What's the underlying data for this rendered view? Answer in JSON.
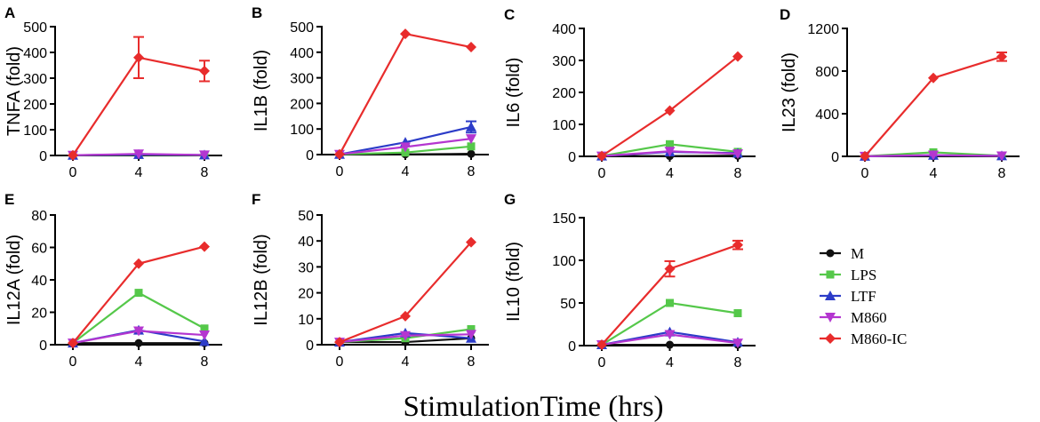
{
  "x_axis_title": "StimulationTime (hrs)",
  "colors": {
    "M": "#111111",
    "LPS": "#55c84a",
    "LTF": "#2c3cc8",
    "M860": "#b436d0",
    "M860-IC": "#e82c2c"
  },
  "legend": [
    {
      "name": "M",
      "marker": "circle"
    },
    {
      "name": "LPS",
      "marker": "square"
    },
    {
      "name": "LTF",
      "marker": "triangle-up"
    },
    {
      "name": "M860",
      "marker": "triangle-down"
    },
    {
      "name": "M860-IC",
      "marker": "diamond"
    }
  ],
  "chart_data": [
    {
      "panel": "A",
      "type": "line",
      "ylabel": "TNFA (fold)",
      "x": [
        0,
        4,
        8
      ],
      "xticks": [
        "0",
        "4",
        "8"
      ],
      "ylim": [
        0,
        500
      ],
      "yticks": [
        0,
        100,
        200,
        300,
        400,
        500
      ],
      "series": [
        {
          "name": "M",
          "values": [
            1,
            1,
            1
          ]
        },
        {
          "name": "LPS",
          "values": [
            1,
            3,
            1
          ]
        },
        {
          "name": "LTF",
          "values": [
            1,
            4,
            2
          ]
        },
        {
          "name": "M860",
          "values": [
            1,
            6,
            2
          ]
        },
        {
          "name": "M860-IC",
          "values": [
            1,
            380,
            328
          ],
          "errors": [
            0,
            80,
            40
          ]
        }
      ]
    },
    {
      "panel": "B",
      "type": "line",
      "ylabel": "IL1B (fold)",
      "x": [
        0,
        4,
        8
      ],
      "xticks": [
        "0",
        "4",
        "8"
      ],
      "ylim": [
        0,
        500
      ],
      "yticks": [
        0,
        100,
        200,
        300,
        400,
        500
      ],
      "series": [
        {
          "name": "M",
          "values": [
            1,
            1,
            3
          ]
        },
        {
          "name": "LPS",
          "values": [
            1,
            8,
            32
          ]
        },
        {
          "name": "LTF",
          "values": [
            1,
            48,
            108
          ],
          "errors": [
            0,
            0,
            22
          ]
        },
        {
          "name": "M860",
          "values": [
            1,
            30,
            62
          ]
        },
        {
          "name": "M860-IC",
          "values": [
            1,
            472,
            420
          ]
        }
      ]
    },
    {
      "panel": "C",
      "type": "line",
      "ylabel": "IL6 (fold)",
      "x": [
        0,
        4,
        8
      ],
      "xticks": [
        "0",
        "4",
        "8"
      ],
      "ylim": [
        0,
        400
      ],
      "yticks": [
        0,
        100,
        200,
        300,
        400
      ],
      "series": [
        {
          "name": "M",
          "values": [
            1,
            1,
            2
          ]
        },
        {
          "name": "LPS",
          "values": [
            1,
            38,
            14
          ]
        },
        {
          "name": "LTF",
          "values": [
            1,
            14,
            10
          ]
        },
        {
          "name": "M860",
          "values": [
            1,
            16,
            8
          ]
        },
        {
          "name": "M860-IC",
          "values": [
            1,
            143,
            312
          ]
        }
      ]
    },
    {
      "panel": "D",
      "type": "line",
      "ylabel": "IL23 (fold)",
      "x": [
        0,
        4,
        8
      ],
      "xticks": [
        "0",
        "4",
        "8"
      ],
      "ylim": [
        0,
        1200
      ],
      "yticks": [
        0,
        400,
        800,
        1200
      ],
      "series": [
        {
          "name": "M",
          "values": [
            1,
            1,
            1
          ]
        },
        {
          "name": "LPS",
          "values": [
            1,
            38,
            5
          ]
        },
        {
          "name": "LTF",
          "values": [
            1,
            10,
            5
          ]
        },
        {
          "name": "M860",
          "values": [
            1,
            12,
            4
          ]
        },
        {
          "name": "M860-IC",
          "values": [
            1,
            735,
            935
          ],
          "errors": [
            0,
            0,
            40
          ]
        }
      ]
    },
    {
      "panel": "E",
      "type": "line",
      "ylabel": "IL12A (fold)",
      "x": [
        0,
        4,
        8
      ],
      "xticks": [
        "0",
        "4",
        "8"
      ],
      "ylim": [
        0,
        80
      ],
      "yticks": [
        0,
        20,
        40,
        60,
        80
      ],
      "series": [
        {
          "name": "M",
          "values": [
            1,
            1,
            1
          ]
        },
        {
          "name": "LPS",
          "values": [
            1,
            32,
            10
          ]
        },
        {
          "name": "LTF",
          "values": [
            1,
            9,
            2
          ]
        },
        {
          "name": "M860",
          "values": [
            1,
            8.5,
            6
          ]
        },
        {
          "name": "M860-IC",
          "values": [
            1,
            50,
            60.5
          ]
        }
      ]
    },
    {
      "panel": "F",
      "type": "line",
      "ylabel": "IL12B (fold)",
      "x": [
        0,
        4,
        8
      ],
      "xticks": [
        "0",
        "4",
        "8"
      ],
      "ylim": [
        0,
        50
      ],
      "yticks": [
        0,
        10,
        20,
        30,
        40,
        50
      ],
      "series": [
        {
          "name": "M",
          "values": [
            1,
            1,
            2.5
          ]
        },
        {
          "name": "LPS",
          "values": [
            1,
            2.5,
            6
          ]
        },
        {
          "name": "LTF",
          "values": [
            1,
            4.5,
            2.5
          ]
        },
        {
          "name": "M860",
          "values": [
            1,
            3.5,
            4
          ]
        },
        {
          "name": "M860-IC",
          "values": [
            1,
            11,
            39.5
          ]
        }
      ]
    },
    {
      "panel": "G",
      "type": "line",
      "ylabel": "IL10 (fold)",
      "x": [
        0,
        4,
        8
      ],
      "xticks": [
        "0",
        "4",
        "8"
      ],
      "ylim": [
        0,
        150
      ],
      "yticks": [
        0,
        50,
        100,
        150
      ],
      "series": [
        {
          "name": "M",
          "values": [
            1,
            1,
            1
          ]
        },
        {
          "name": "LPS",
          "values": [
            1,
            50,
            38
          ]
        },
        {
          "name": "LTF",
          "values": [
            1,
            16,
            4
          ]
        },
        {
          "name": "M860",
          "values": [
            1,
            13,
            3
          ]
        },
        {
          "name": "M860-IC",
          "values": [
            1,
            90,
            118
          ],
          "errors": [
            0,
            9,
            5
          ]
        }
      ]
    }
  ]
}
